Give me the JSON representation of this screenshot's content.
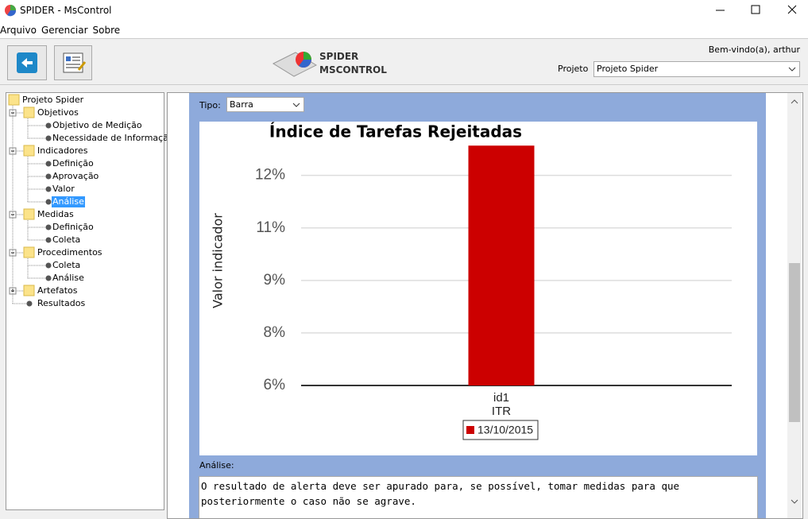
{
  "window": {
    "title": "SPIDER - MsControl"
  },
  "menu": [
    "Arquivo",
    "Gerenciar",
    "Sobre"
  ],
  "header": {
    "logo_line1": "SPIDER",
    "logo_line2": "MSCONTROL",
    "welcome": "Bem-vindo(a), arthur",
    "project_label": "Projeto",
    "project_value": "Projeto Spider"
  },
  "tree": {
    "label": "Projeto Spider",
    "children": [
      {
        "label": "Objetivos",
        "children": [
          {
            "label": "Objetivo de Medição"
          },
          {
            "label": "Necessidade de Informação"
          }
        ]
      },
      {
        "label": "Indicadores",
        "children": [
          {
            "label": "Definição"
          },
          {
            "label": "Aprovação"
          },
          {
            "label": "Valor"
          },
          {
            "label": "Análise",
            "selected": true
          }
        ]
      },
      {
        "label": "Medidas",
        "children": [
          {
            "label": "Definição"
          },
          {
            "label": "Coleta"
          }
        ]
      },
      {
        "label": "Procedimentos",
        "children": [
          {
            "label": "Coleta"
          },
          {
            "label": "Análise"
          }
        ]
      },
      {
        "label": "Artefatos",
        "collapsed": true
      },
      {
        "label": "Resultados"
      }
    ]
  },
  "tipo": {
    "label": "Tipo:",
    "value": "Barra"
  },
  "chart_data": {
    "type": "bar",
    "title": "Índice de Tarefas Rejeitadas",
    "y_label": "Valor indicador",
    "categories": [
      [
        "id1",
        "ITR"
      ]
    ],
    "series": [
      {
        "name": "13/10/2015",
        "color": "#cc0000",
        "values": [
          12.85
        ]
      }
    ],
    "ylim": [
      6,
      12.9
    ],
    "yticks": [
      {
        "value": 6,
        "label": "6%"
      },
      {
        "value": 7.5,
        "label": "8%"
      },
      {
        "value": 9,
        "label": "9%"
      },
      {
        "value": 10.5,
        "label": "11%"
      },
      {
        "value": 12,
        "label": "12%"
      }
    ],
    "grid": true
  },
  "analysis": {
    "label": "Análise:",
    "text": "O resultado de alerta deve ser apurado para, se possível, tomar medidas para que posteriormente o caso não se agrave."
  }
}
